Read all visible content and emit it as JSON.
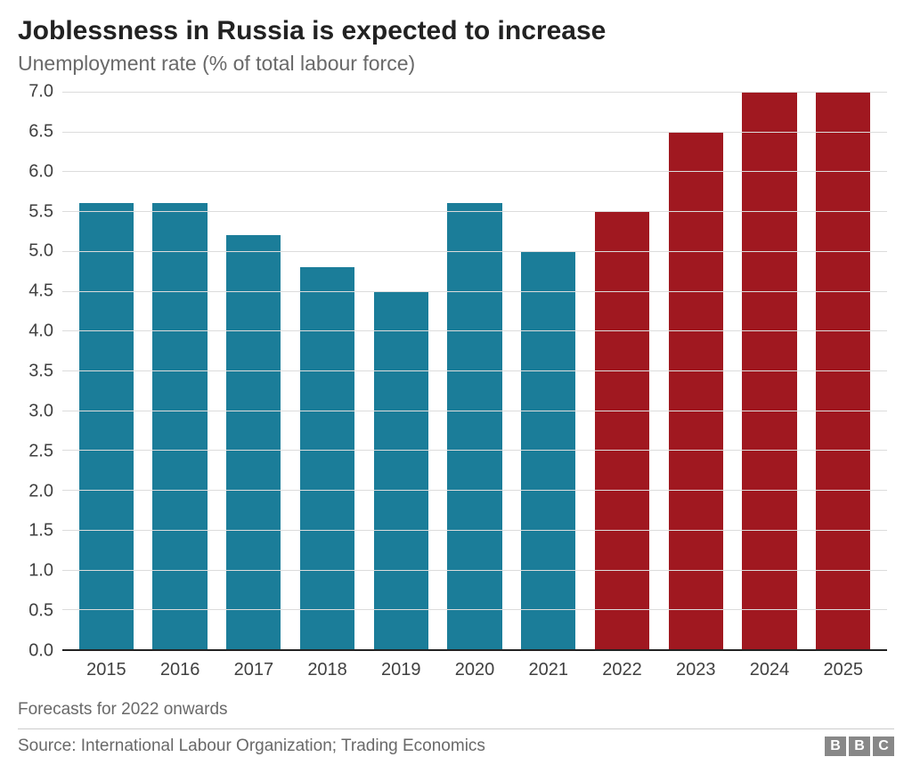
{
  "chart": {
    "type": "bar",
    "title": "Joblessness in Russia is expected to increase",
    "subtitle": "Unemployment rate (% of total labour force)",
    "title_fontsize": 30,
    "title_color": "#222222",
    "subtitle_fontsize": 23,
    "subtitle_color": "#696969",
    "background_color": "#ffffff",
    "grid_color": "#dcdcdc",
    "axis_color": "#222222",
    "tick_label_color": "#404040",
    "tick_label_fontsize": 20,
    "ylim": [
      0.0,
      7.0
    ],
    "ytick_step": 0.5,
    "yticks": [
      "0.0",
      "0.5",
      "1.0",
      "1.5",
      "2.0",
      "2.5",
      "3.0",
      "3.5",
      "4.0",
      "4.5",
      "5.0",
      "5.5",
      "6.0",
      "6.5",
      "7.0"
    ],
    "categories": [
      "2015",
      "2016",
      "2017",
      "2018",
      "2019",
      "2020",
      "2021",
      "2022",
      "2023",
      "2024",
      "2025"
    ],
    "values": [
      5.6,
      5.6,
      5.2,
      4.8,
      4.5,
      5.6,
      5.0,
      5.5,
      6.5,
      7.0,
      7.0
    ],
    "bar_colors": [
      "#1b7d99",
      "#1b7d99",
      "#1b7d99",
      "#1b7d99",
      "#1b7d99",
      "#1b7d99",
      "#1b7d99",
      "#a01820",
      "#a01820",
      "#a01820",
      "#a01820"
    ],
    "bar_width": 0.74,
    "color_historical": "#1b7d99",
    "color_forecast": "#a01820"
  },
  "footnote": "Forecasts for 2022 onwards",
  "source": "Source: International Labour Organization; Trading Economics",
  "logo": {
    "letters": [
      "B",
      "B",
      "C"
    ],
    "box_color": "#888888",
    "text_color": "#ffffff"
  }
}
